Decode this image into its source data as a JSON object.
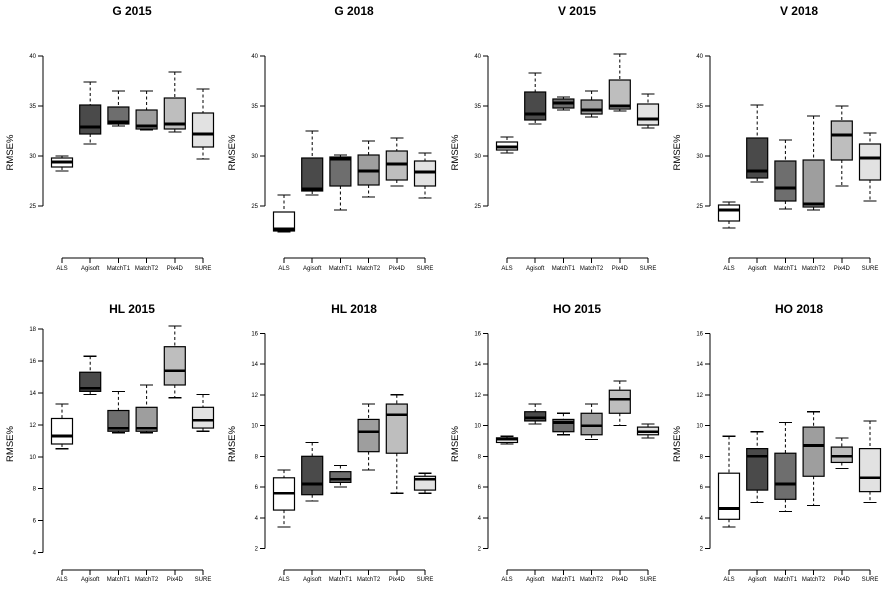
{
  "figure": {
    "background": "#ffffff",
    "ylabel": "RMSE%",
    "categories": [
      "ALS",
      "Agisoft",
      "MatchT1",
      "MatchT2",
      "Pix4D",
      "SURE"
    ],
    "box_fills": [
      "#ffffff",
      "#4a4a4a",
      "#6e6e6e",
      "#9e9e9e",
      "#bebebe",
      "#e2e2e2"
    ],
    "box_border_color": "#000000",
    "median_color": "#000000",
    "whisker_style": "dashed"
  },
  "chart_data": [
    {
      "type": "box",
      "title": "G 2015",
      "ylabel": "RMSE%",
      "row": 0,
      "col": 0,
      "yticks": [
        25,
        30,
        35,
        40
      ],
      "ylim": [
        19.8,
        40.9
      ],
      "grid": false,
      "boxes": [
        {
          "category": "ALS",
          "whisker_low": 28.5,
          "q1": 28.9,
          "median": 29.4,
          "q3": 29.8,
          "whisker_high": 30.0
        },
        {
          "category": "Agisoft",
          "whisker_low": 31.2,
          "q1": 32.2,
          "median": 32.9,
          "q3": 35.1,
          "whisker_high": 37.4
        },
        {
          "category": "MatchT1",
          "whisker_low": 33.0,
          "q1": 33.2,
          "median": 33.4,
          "q3": 34.9,
          "whisker_high": 36.5
        },
        {
          "category": "MatchT2",
          "whisker_low": 32.6,
          "q1": 32.7,
          "median": 33.0,
          "q3": 34.6,
          "whisker_high": 36.5
        },
        {
          "category": "Pix4D",
          "whisker_low": 32.4,
          "q1": 32.7,
          "median": 33.2,
          "q3": 35.8,
          "whisker_high": 38.4
        },
        {
          "category": "SURE",
          "whisker_low": 29.7,
          "q1": 30.9,
          "median": 32.2,
          "q3": 34.3,
          "whisker_high": 36.7
        }
      ]
    },
    {
      "type": "box",
      "title": "G 2018",
      "ylabel": "RMSE%",
      "row": 0,
      "col": 1,
      "yticks": [
        25,
        30,
        35,
        40
      ],
      "ylim": [
        19.8,
        40.9
      ],
      "grid": false,
      "boxes": [
        {
          "category": "ALS",
          "whisker_low": 22.4,
          "q1": 22.5,
          "median": 22.7,
          "q3": 24.4,
          "whisker_high": 26.1
        },
        {
          "category": "Agisoft",
          "whisker_low": 26.1,
          "q1": 26.5,
          "median": 26.7,
          "q3": 29.8,
          "whisker_high": 32.5
        },
        {
          "category": "MatchT1",
          "whisker_low": 24.6,
          "q1": 27.0,
          "median": 29.7,
          "q3": 29.9,
          "whisker_high": 30.1
        },
        {
          "category": "MatchT2",
          "whisker_low": 25.9,
          "q1": 27.1,
          "median": 28.5,
          "q3": 30.1,
          "whisker_high": 31.5
        },
        {
          "category": "Pix4D",
          "whisker_low": 27.0,
          "q1": 27.6,
          "median": 29.2,
          "q3": 30.5,
          "whisker_high": 31.8
        },
        {
          "category": "SURE",
          "whisker_low": 25.8,
          "q1": 27.0,
          "median": 28.4,
          "q3": 29.5,
          "whisker_high": 30.3
        }
      ]
    },
    {
      "type": "box",
      "title": "V 2015",
      "ylabel": "RMSE%",
      "row": 0,
      "col": 2,
      "yticks": [
        25,
        30,
        35,
        40
      ],
      "ylim": [
        19.8,
        40.9
      ],
      "grid": false,
      "boxes": [
        {
          "category": "ALS",
          "whisker_low": 30.3,
          "q1": 30.6,
          "median": 30.9,
          "q3": 31.4,
          "whisker_high": 31.9
        },
        {
          "category": "Agisoft",
          "whisker_low": 33.2,
          "q1": 33.6,
          "median": 34.2,
          "q3": 36.4,
          "whisker_high": 38.3
        },
        {
          "category": "MatchT1",
          "whisker_low": 34.6,
          "q1": 34.8,
          "median": 35.3,
          "q3": 35.7,
          "whisker_high": 35.9
        },
        {
          "category": "MatchT2",
          "whisker_low": 33.9,
          "q1": 34.2,
          "median": 34.6,
          "q3": 35.6,
          "whisker_high": 36.5
        },
        {
          "category": "Pix4D",
          "whisker_low": 34.5,
          "q1": 34.7,
          "median": 35.0,
          "q3": 37.6,
          "whisker_high": 40.2
        },
        {
          "category": "SURE",
          "whisker_low": 32.8,
          "q1": 33.1,
          "median": 33.7,
          "q3": 35.2,
          "whisker_high": 36.2
        }
      ]
    },
    {
      "type": "box",
      "title": "V 2018",
      "ylabel": "RMSE%",
      "row": 0,
      "col": 3,
      "yticks": [
        25,
        30,
        35,
        40
      ],
      "ylim": [
        19.8,
        40.9
      ],
      "grid": false,
      "boxes": [
        {
          "category": "ALS",
          "whisker_low": 22.8,
          "q1": 23.5,
          "median": 24.6,
          "q3": 25.1,
          "whisker_high": 25.4
        },
        {
          "category": "Agisoft",
          "whisker_low": 27.4,
          "q1": 27.8,
          "median": 28.5,
          "q3": 31.8,
          "whisker_high": 35.1
        },
        {
          "category": "MatchT1",
          "whisker_low": 24.7,
          "q1": 25.5,
          "median": 26.8,
          "q3": 29.5,
          "whisker_high": 31.6
        },
        {
          "category": "MatchT2",
          "whisker_low": 24.6,
          "q1": 24.9,
          "median": 25.2,
          "q3": 29.6,
          "whisker_high": 34.0
        },
        {
          "category": "Pix4D",
          "whisker_low": 27.0,
          "q1": 29.6,
          "median": 32.1,
          "q3": 33.5,
          "whisker_high": 35.0
        },
        {
          "category": "SURE",
          "whisker_low": 25.5,
          "q1": 27.6,
          "median": 29.8,
          "q3": 31.2,
          "whisker_high": 32.3
        }
      ]
    },
    {
      "type": "box",
      "title": "HL 2015",
      "ylabel": "RMSE%",
      "row": 1,
      "col": 0,
      "yticks": [
        4,
        6,
        8,
        10,
        12,
        14,
        16,
        18
      ],
      "ylim": [
        2.9,
        18.7
      ],
      "grid": false,
      "boxes": [
        {
          "category": "ALS",
          "whisker_low": 10.5,
          "q1": 10.8,
          "median": 11.3,
          "q3": 12.4,
          "whisker_high": 13.3
        },
        {
          "category": "Agisoft",
          "whisker_low": 13.9,
          "q1": 14.1,
          "median": 14.3,
          "q3": 15.3,
          "whisker_high": 16.3
        },
        {
          "category": "MatchT1",
          "whisker_low": 11.5,
          "q1": 11.6,
          "median": 11.8,
          "q3": 12.9,
          "whisker_high": 14.1
        },
        {
          "category": "MatchT2",
          "whisker_low": 11.5,
          "q1": 11.6,
          "median": 11.8,
          "q3": 13.1,
          "whisker_high": 14.5
        },
        {
          "category": "Pix4D",
          "whisker_low": 13.7,
          "q1": 14.5,
          "median": 15.4,
          "q3": 16.9,
          "whisker_high": 18.2
        },
        {
          "category": "SURE",
          "whisker_low": 11.6,
          "q1": 11.8,
          "median": 12.3,
          "q3": 13.1,
          "whisker_high": 13.9
        }
      ]
    },
    {
      "type": "box",
      "title": "HL 2018",
      "ylabel": "RMSE%",
      "row": 1,
      "col": 1,
      "yticks": [
        2,
        4,
        6,
        8,
        10,
        12,
        14,
        16
      ],
      "ylim": [
        0.6,
        17.0
      ],
      "grid": false,
      "boxes": [
        {
          "category": "ALS",
          "whisker_low": 3.4,
          "q1": 4.5,
          "median": 5.6,
          "q3": 6.6,
          "whisker_high": 7.1
        },
        {
          "category": "Agisoft",
          "whisker_low": 5.1,
          "q1": 5.5,
          "median": 6.2,
          "q3": 8.0,
          "whisker_high": 8.9
        },
        {
          "category": "MatchT1",
          "whisker_low": 6.0,
          "q1": 6.3,
          "median": 6.5,
          "q3": 7.0,
          "whisker_high": 7.4
        },
        {
          "category": "MatchT2",
          "whisker_low": 7.1,
          "q1": 8.3,
          "median": 9.6,
          "q3": 10.4,
          "whisker_high": 11.4
        },
        {
          "category": "Pix4D",
          "whisker_low": 5.6,
          "q1": 8.2,
          "median": 10.7,
          "q3": 11.4,
          "whisker_high": 12.0
        },
        {
          "category": "SURE",
          "whisker_low": 5.6,
          "q1": 5.8,
          "median": 6.5,
          "q3": 6.7,
          "whisker_high": 6.9
        }
      ]
    },
    {
      "type": "box",
      "title": "HO 2015",
      "ylabel": "RMSE%",
      "row": 1,
      "col": 2,
      "yticks": [
        2,
        4,
        6,
        8,
        10,
        12,
        14,
        16
      ],
      "ylim": [
        0.6,
        17.0
      ],
      "grid": false,
      "boxes": [
        {
          "category": "ALS",
          "whisker_low": 8.8,
          "q1": 8.9,
          "median": 9.1,
          "q3": 9.2,
          "whisker_high": 9.3
        },
        {
          "category": "Agisoft",
          "whisker_low": 10.1,
          "q1": 10.3,
          "median": 10.5,
          "q3": 10.9,
          "whisker_high": 11.4
        },
        {
          "category": "MatchT1",
          "whisker_low": 9.4,
          "q1": 9.6,
          "median": 10.2,
          "q3": 10.4,
          "whisker_high": 10.8
        },
        {
          "category": "MatchT2",
          "whisker_low": 9.1,
          "q1": 9.4,
          "median": 10.0,
          "q3": 10.8,
          "whisker_high": 11.4
        },
        {
          "category": "Pix4D",
          "whisker_low": 10.0,
          "q1": 10.8,
          "median": 11.7,
          "q3": 12.3,
          "whisker_high": 12.9
        },
        {
          "category": "SURE",
          "whisker_low": 9.2,
          "q1": 9.4,
          "median": 9.6,
          "q3": 9.9,
          "whisker_high": 10.1
        }
      ]
    },
    {
      "type": "box",
      "title": "HO 2018",
      "ylabel": "RMSE%",
      "row": 1,
      "col": 3,
      "yticks": [
        2,
        4,
        6,
        8,
        10,
        12,
        14,
        16
      ],
      "ylim": [
        0.6,
        17.0
      ],
      "grid": false,
      "boxes": [
        {
          "category": "ALS",
          "whisker_low": 3.4,
          "q1": 3.9,
          "median": 4.6,
          "q3": 6.9,
          "whisker_high": 9.3
        },
        {
          "category": "Agisoft",
          "whisker_low": 5.0,
          "q1": 5.8,
          "median": 8.0,
          "q3": 8.5,
          "whisker_high": 9.6
        },
        {
          "category": "MatchT1",
          "whisker_low": 4.4,
          "q1": 5.2,
          "median": 6.2,
          "q3": 8.2,
          "whisker_high": 10.2
        },
        {
          "category": "MatchT2",
          "whisker_low": 4.8,
          "q1": 6.7,
          "median": 8.7,
          "q3": 9.9,
          "whisker_high": 10.9
        },
        {
          "category": "Pix4D",
          "whisker_low": 7.2,
          "q1": 7.6,
          "median": 8.0,
          "q3": 8.6,
          "whisker_high": 9.2
        },
        {
          "category": "SURE",
          "whisker_low": 5.0,
          "q1": 5.7,
          "median": 6.6,
          "q3": 8.5,
          "whisker_high": 10.3
        }
      ]
    }
  ]
}
